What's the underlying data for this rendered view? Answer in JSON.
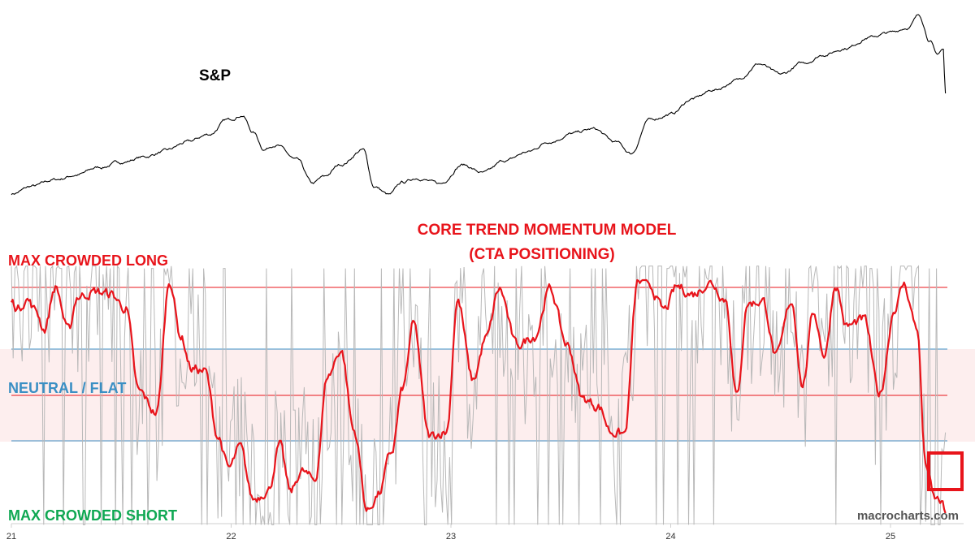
{
  "colors": {
    "max_long": "#e8141b",
    "neutral": "#3a8fc4",
    "max_short": "#10a853",
    "model_line": "#e8141b",
    "raw_signal": "#b8b8b8",
    "sp_line": "#000000",
    "neutral_band": "#fdeeee",
    "watermark": "#555555"
  },
  "labels": {
    "sp": "S&P",
    "title_line1": "CORE TREND MOMENTUM MODEL",
    "title_line2": "(CTA POSITIONING)",
    "max_long": "MAX CROWDED LONG",
    "neutral": "NEUTRAL / FLAT",
    "max_short": "MAX CROWDED SHORT",
    "watermark": "macrocharts.com"
  },
  "chart_data": [
    {
      "type": "line",
      "series": [
        {
          "name": "S&P",
          "x": [
            21.0,
            21.1,
            21.2,
            21.3,
            21.4,
            21.5,
            21.6,
            21.7,
            21.8,
            21.9,
            21.98,
            22.05,
            22.1,
            22.15,
            22.2,
            22.3,
            22.37,
            22.42,
            22.5,
            22.6,
            22.65,
            22.72,
            22.78,
            22.85,
            22.95,
            23.05,
            23.15,
            23.25,
            23.35,
            23.45,
            23.55,
            23.65,
            23.75,
            23.82,
            23.9,
            24.0,
            24.1,
            24.2,
            24.3,
            24.4,
            24.5,
            24.6,
            24.7,
            24.8,
            24.9,
            25.0,
            25.08,
            25.13,
            25.18,
            25.21,
            25.24,
            25.25
          ],
          "values": [
            3700,
            3800,
            3890,
            3960,
            4060,
            4130,
            4200,
            4280,
            4400,
            4510,
            4700,
            4780,
            4540,
            4310,
            4380,
            4150,
            3830,
            3920,
            4100,
            4300,
            3800,
            3680,
            3850,
            3920,
            3830,
            4100,
            3980,
            4150,
            4270,
            4420,
            4520,
            4580,
            4400,
            4250,
            4700,
            4790,
            5000,
            5120,
            5250,
            5480,
            5320,
            5480,
            5610,
            5700,
            5840,
            5900,
            5980,
            6140,
            5800,
            5600,
            5680,
            5070
          ]
        },
        {
          "name": "",
          "x": [
            21.0,
            21.03,
            21.07,
            21.11,
            21.15,
            21.2,
            21.26,
            21.3,
            21.38,
            21.45,
            21.52,
            21.58,
            21.66,
            21.72,
            21.77,
            21.82,
            21.88,
            21.94,
            21.99,
            22.04,
            22.1,
            22.17,
            22.22,
            22.27,
            22.32,
            22.38,
            22.44,
            22.5,
            22.56,
            22.62,
            22.67,
            22.73,
            22.78,
            22.83,
            22.9,
            22.98,
            23.03,
            23.1,
            23.16,
            23.22,
            23.3,
            23.38,
            23.45,
            23.53,
            23.6,
            23.67,
            23.73,
            23.79,
            23.85,
            23.9,
            23.97,
            24.03,
            24.1,
            24.18,
            24.25,
            24.3,
            24.35,
            24.42,
            24.48,
            24.55,
            24.6,
            24.65,
            24.7,
            24.75,
            24.8,
            24.88,
            24.95,
            25.02,
            25.06,
            25.12,
            25.16,
            25.2,
            25.23,
            25.25
          ],
          "values": [
            0.91,
            0.88,
            0.92,
            0.87,
            0.79,
            0.97,
            0.78,
            0.93,
            0.95,
            0.94,
            0.88,
            0.52,
            0.43,
            1.0,
            0.76,
            0.62,
            0.61,
            0.33,
            0.19,
            0.28,
            0.06,
            0.1,
            0.29,
            0.09,
            0.18,
            0.14,
            0.59,
            0.7,
            0.35,
            0.01,
            0.08,
            0.26,
            0.53,
            0.81,
            0.33,
            0.35,
            0.91,
            0.57,
            0.75,
            0.96,
            0.72,
            0.76,
            0.96,
            0.72,
            0.49,
            0.46,
            0.35,
            0.34,
            0.99,
            0.98,
            0.87,
            0.97,
            0.94,
            0.99,
            0.92,
            0.5,
            0.9,
            0.91,
            0.67,
            0.91,
            0.55,
            0.86,
            0.68,
            0.98,
            0.8,
            0.83,
            0.51,
            0.88,
            0.98,
            0.8,
            0.21,
            0.06,
            0.05,
            0.0
          ]
        }
      ],
      "x_ticks": [
        "21",
        "22",
        "23",
        "24",
        "25"
      ],
      "reference_lines": [
        "max_long",
        "neutral_upper",
        "neutral_center",
        "neutral_lower",
        "max_short"
      ],
      "ylim_model": [
        0,
        1
      ],
      "grid": false
    }
  ]
}
